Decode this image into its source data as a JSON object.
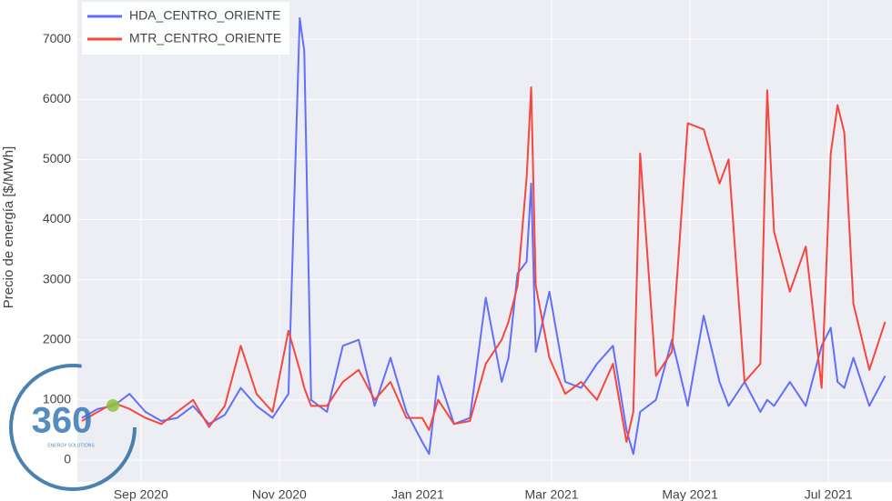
{
  "chart_data": {
    "type": "line",
    "y_label": "Precio de energía [$/MWh]",
    "x": [
      "2020-08-06",
      "2020-08-13",
      "2020-08-20",
      "2020-08-27",
      "2020-09-03",
      "2020-09-10",
      "2020-09-17",
      "2020-09-24",
      "2020-10-01",
      "2020-10-08",
      "2020-10-15",
      "2020-10-22",
      "2020-10-29",
      "2020-11-05",
      "2020-11-10",
      "2020-11-12",
      "2020-11-15",
      "2020-11-22",
      "2020-11-29",
      "2020-12-06",
      "2020-12-13",
      "2020-12-20",
      "2020-12-27",
      "2021-01-03",
      "2021-01-06",
      "2021-01-10",
      "2021-01-17",
      "2021-01-24",
      "2021-01-31",
      "2021-02-07",
      "2021-02-10",
      "2021-02-14",
      "2021-02-18",
      "2021-02-20",
      "2021-02-22",
      "2021-02-28",
      "2021-03-07",
      "2021-03-14",
      "2021-03-21",
      "2021-03-28",
      "2021-04-03",
      "2021-04-06",
      "2021-04-09",
      "2021-04-16",
      "2021-04-23",
      "2021-04-30",
      "2021-05-07",
      "2021-05-14",
      "2021-05-18",
      "2021-05-25",
      "2021-06-01",
      "2021-06-04",
      "2021-06-07",
      "2021-06-14",
      "2021-06-21",
      "2021-06-28",
      "2021-07-02",
      "2021-07-05",
      "2021-07-08",
      "2021-07-12",
      "2021-07-19",
      "2021-07-26"
    ],
    "series": [
      {
        "name": "HDA_CENTRO_ORIENTE",
        "color": "#636efa",
        "values": [
          700,
          850,
          900,
          1100,
          800,
          650,
          700,
          900,
          600,
          750,
          1200,
          900,
          700,
          1100,
          7350,
          6800,
          1000,
          800,
          1900,
          2000,
          900,
          1700,
          800,
          300,
          100,
          1400,
          600,
          700,
          2700,
          1300,
          1700,
          3100,
          3300,
          4600,
          1800,
          2800,
          1300,
          1200,
          1600,
          1900,
          500,
          100,
          800,
          1000,
          2000,
          900,
          2400,
          1300,
          900,
          1300,
          800,
          1000,
          900,
          1300,
          900,
          1900,
          2200,
          1300,
          1200,
          1700,
          900,
          1400
        ]
      },
      {
        "name": "MTR_CENTRO_ORIENTE",
        "color": "#f7463e",
        "values": [
          650,
          800,
          950,
          850,
          700,
          600,
          800,
          1000,
          550,
          900,
          1900,
          1100,
          800,
          2150,
          1500,
          1200,
          900,
          900,
          1300,
          1500,
          1000,
          1300,
          700,
          700,
          500,
          1000,
          600,
          650,
          1600,
          2000,
          2300,
          2900,
          4700,
          6200,
          2900,
          1700,
          1100,
          1300,
          1000,
          1600,
          300,
          800,
          5100,
          1400,
          1800,
          5600,
          5500,
          4600,
          5000,
          1300,
          1600,
          6150,
          3800,
          2800,
          3550,
          1200,
          5100,
          5900,
          5450,
          2600,
          1500,
          2300
        ]
      }
    ],
    "xlim": [
      "2020-08-04",
      "2021-07-29"
    ],
    "xticks": [
      {
        "value": "2020-09-01",
        "label": "Sep 2020"
      },
      {
        "value": "2020-11-01",
        "label": "Nov 2020"
      },
      {
        "value": "2021-01-01",
        "label": "Jan 2021"
      },
      {
        "value": "2021-03-01",
        "label": "Mar 2021"
      },
      {
        "value": "2021-05-01",
        "label": "May 2021"
      },
      {
        "value": "2021-07-01",
        "label": "Jul 2021"
      }
    ],
    "ylim": [
      -500,
      7500
    ],
    "yticks": [
      0,
      1000,
      2000,
      3000,
      4000,
      5000,
      6000,
      7000
    ],
    "grid": true,
    "legend": "top-left"
  },
  "logo": {
    "text": "360",
    "tagline": "ENERGY SOLUTIONS"
  }
}
